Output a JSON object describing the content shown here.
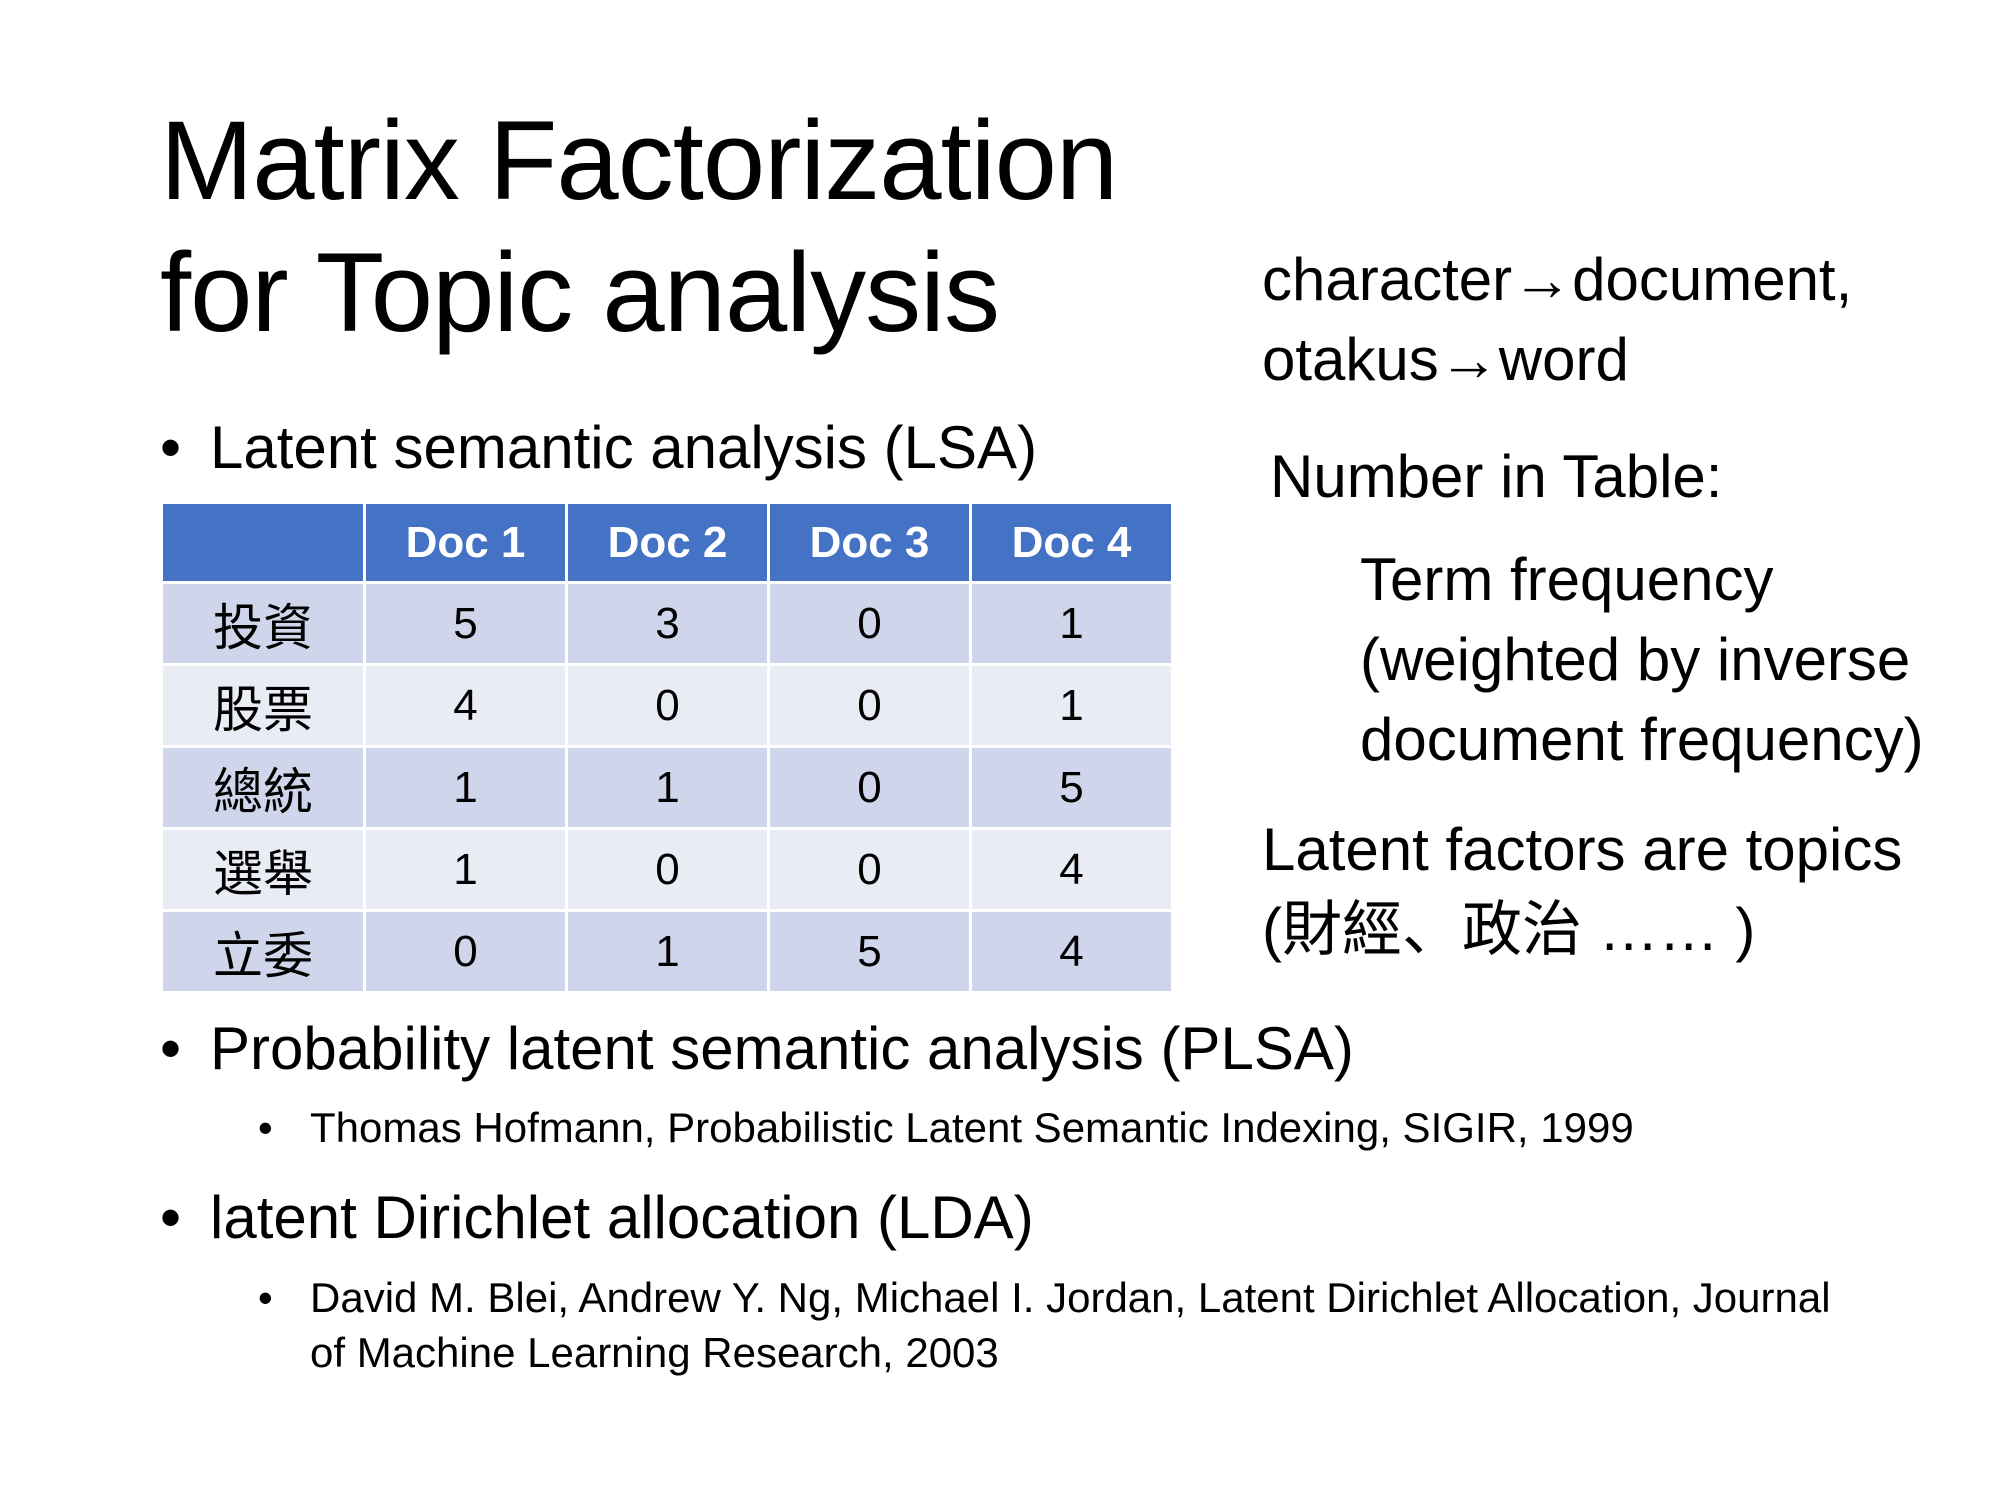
{
  "title": {
    "line1": "Matrix Factorization",
    "line2": "for Topic analysis"
  },
  "bullets": {
    "lsa": "Latent semantic analysis (LSA)",
    "plsa": "Probability latent semantic analysis (PLSA)",
    "plsa_ref": "Thomas Hofmann, Probabilistic Latent Semantic Indexing, SIGIR, 1999",
    "lda": "latent Dirichlet allocation (LDA)",
    "lda_ref": "David M. Blei, Andrew Y. Ng, Michael I. Jordan, Latent Dirichlet Allocation, Journal of Machine Learning Research, 2003",
    "marker": "•"
  },
  "table": {
    "headers": [
      "",
      "Doc 1",
      "Doc 2",
      "Doc 3",
      "Doc 4"
    ],
    "rows": [
      {
        "term": "投資",
        "values": [
          "5",
          "3",
          "0",
          "1"
        ]
      },
      {
        "term": "股票",
        "values": [
          "4",
          "0",
          "0",
          "1"
        ]
      },
      {
        "term": "總統",
        "values": [
          "1",
          "1",
          "0",
          "5"
        ]
      },
      {
        "term": "選舉",
        "values": [
          "1",
          "0",
          "0",
          "4"
        ]
      },
      {
        "term": "立委",
        "values": [
          "0",
          "1",
          "5",
          "4"
        ]
      }
    ],
    "header_color": "#4472c4",
    "band_dark": "#cfd5ea",
    "band_light": "#e9ebf5"
  },
  "notes": {
    "mapping_line1": "character→document,",
    "mapping_line2": "otakus→word",
    "number_in_table": "Number in Table:",
    "tf_line1": "Term frequency",
    "tf_line2": "(weighted by inverse",
    "tf_line3": "document frequency)",
    "latent_line1": "Latent factors are topics",
    "latent_line2": "(財經、政治 …… )"
  }
}
